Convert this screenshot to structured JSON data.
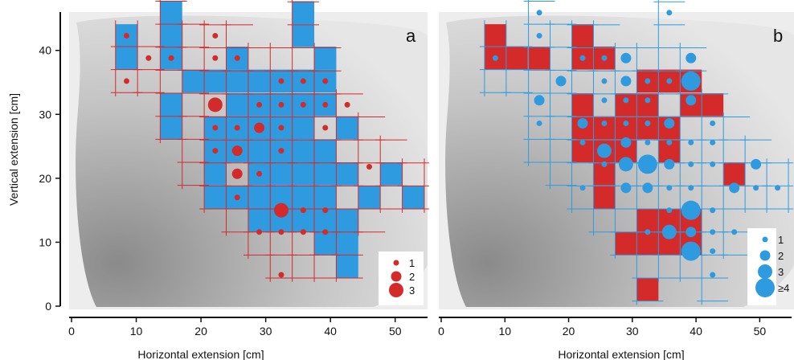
{
  "colors": {
    "blue": "#2e9be0",
    "red": "#d42a2a",
    "background_gradient_dark": "#8e8e8e",
    "background_gradient_light": "#e8e8e8",
    "panel_bg": "#eeeeee"
  },
  "chart_data": [
    {
      "type": "heatmap",
      "panel_label": "a",
      "xlabel": "Horizontal extension [cm]",
      "ylabel": "Vertical extension [cm]",
      "xlim": [
        0,
        55
      ],
      "ylim": [
        0,
        46
      ],
      "xticks": [
        0,
        10,
        20,
        30,
        40,
        50
      ],
      "yticks": [
        0,
        10,
        20,
        30,
        40
      ],
      "grid_color": "red",
      "cell_size_cm": [
        3.4,
        3.6
      ],
      "filled_cells": [
        [
          8.5,
          42.3
        ],
        [
          15.4,
          45.9
        ],
        [
          15.4,
          42.3
        ],
        [
          15.4,
          38.8
        ],
        [
          18.8,
          35.2
        ],
        [
          15.4,
          31.5
        ],
        [
          15.4,
          27.9
        ],
        [
          22.2,
          27.9
        ],
        [
          22.2,
          24.3
        ],
        [
          22.2,
          20.7
        ],
        [
          25.6,
          38.8
        ],
        [
          25.6,
          35.2
        ],
        [
          25.6,
          31.5
        ],
        [
          25.6,
          27.9
        ],
        [
          25.6,
          24.3
        ],
        [
          29.0,
          35.2
        ],
        [
          29.0,
          31.5
        ],
        [
          29.0,
          27.9
        ],
        [
          29.0,
          24.3
        ],
        [
          29.0,
          20.7
        ],
        [
          32.4,
          35.2
        ],
        [
          32.4,
          31.5
        ],
        [
          32.4,
          27.9
        ],
        [
          32.4,
          24.3
        ],
        [
          32.4,
          20.7
        ],
        [
          35.8,
          45.9
        ],
        [
          35.8,
          42.3
        ],
        [
          35.8,
          35.2
        ],
        [
          35.8,
          31.5
        ],
        [
          35.8,
          27.9
        ],
        [
          35.8,
          24.3
        ],
        [
          35.8,
          20.7
        ],
        [
          35.8,
          17.0
        ],
        [
          35.8,
          13.4
        ],
        [
          39.2,
          38.8
        ],
        [
          39.2,
          35.2
        ],
        [
          39.2,
          31.5
        ],
        [
          39.2,
          24.3
        ],
        [
          39.2,
          20.7
        ],
        [
          39.2,
          17.0
        ],
        [
          39.2,
          9.8
        ],
        [
          42.6,
          27.9
        ],
        [
          42.6,
          20.7
        ],
        [
          42.6,
          13.4
        ],
        [
          42.6,
          6.2
        ],
        [
          22.2,
          17.0
        ],
        [
          25.6,
          17.0
        ],
        [
          29.0,
          17.0
        ],
        [
          32.4,
          17.0
        ],
        [
          46.0,
          17.0
        ],
        [
          49.4,
          20.7
        ],
        [
          52.8,
          17.0
        ],
        [
          29.0,
          13.4
        ],
        [
          32.4,
          13.4
        ],
        [
          39.2,
          13.4
        ],
        [
          42.6,
          9.8
        ],
        [
          22.2,
          35.2
        ],
        [
          8.5,
          38.8
        ]
      ],
      "grid_columns": [
        {
          "x": 8.5,
          "y_range": [
            35.2,
            42.3
          ]
        },
        {
          "x": 11.9,
          "y_range": [
            35.2,
            42.3
          ]
        },
        {
          "x": 15.4,
          "y_range": [
            27.9,
            45.9
          ]
        },
        {
          "x": 18.8,
          "y_range": [
            20.7,
            42.3
          ]
        },
        {
          "x": 22.2,
          "y_range": [
            17.0,
            42.3
          ]
        },
        {
          "x": 25.6,
          "y_range": [
            13.4,
            42.3
          ]
        },
        {
          "x": 29.0,
          "y_range": [
            9.8,
            38.8
          ]
        },
        {
          "x": 32.4,
          "y_range": [
            6.2,
            38.8
          ]
        },
        {
          "x": 35.8,
          "y_range": [
            6.2,
            45.9
          ]
        },
        {
          "x": 39.2,
          "y_range": [
            6.2,
            38.8
          ]
        },
        {
          "x": 42.6,
          "y_range": [
            6.2,
            31.5
          ]
        },
        {
          "x": 46.0,
          "y_range": [
            13.4,
            27.9
          ]
        },
        {
          "x": 49.4,
          "y_range": [
            17.0,
            24.3
          ]
        },
        {
          "x": 52.8,
          "y_range": [
            17.0,
            20.7
          ]
        }
      ],
      "dots": [
        {
          "x": 8.5,
          "y": 42.3,
          "n": 1
        },
        {
          "x": 11.9,
          "y": 38.8,
          "n": 1
        },
        {
          "x": 15.4,
          "y": 38.8,
          "n": 1
        },
        {
          "x": 8.5,
          "y": 35.2,
          "n": 1
        },
        {
          "x": 22.2,
          "y": 42.3,
          "n": 1
        },
        {
          "x": 22.2,
          "y": 38.8,
          "n": 1
        },
        {
          "x": 25.6,
          "y": 38.8,
          "n": 1
        },
        {
          "x": 22.2,
          "y": 31.5,
          "n": 3
        },
        {
          "x": 22.2,
          "y": 27.9,
          "n": 1
        },
        {
          "x": 22.2,
          "y": 24.3,
          "n": 1
        },
        {
          "x": 25.6,
          "y": 27.9,
          "n": 1
        },
        {
          "x": 25.6,
          "y": 24.3,
          "n": 2
        },
        {
          "x": 25.6,
          "y": 20.7,
          "n": 2
        },
        {
          "x": 25.6,
          "y": 17.0,
          "n": 1
        },
        {
          "x": 29.0,
          "y": 31.5,
          "n": 1
        },
        {
          "x": 29.0,
          "y": 27.9,
          "n": 2
        },
        {
          "x": 29.0,
          "y": 20.7,
          "n": 1
        },
        {
          "x": 32.4,
          "y": 35.2,
          "n": 1
        },
        {
          "x": 32.4,
          "y": 31.5,
          "n": 1
        },
        {
          "x": 32.4,
          "y": 27.9,
          "n": 1
        },
        {
          "x": 32.4,
          "y": 24.3,
          "n": 1
        },
        {
          "x": 35.8,
          "y": 35.2,
          "n": 1
        },
        {
          "x": 35.8,
          "y": 31.5,
          "n": 1
        },
        {
          "x": 39.2,
          "y": 35.2,
          "n": 1
        },
        {
          "x": 39.2,
          "y": 31.5,
          "n": 1
        },
        {
          "x": 39.2,
          "y": 27.9,
          "n": 1
        },
        {
          "x": 42.6,
          "y": 31.5,
          "n": 1
        },
        {
          "x": 46.0,
          "y": 21.8,
          "n": 1
        },
        {
          "x": 32.4,
          "y": 15.0,
          "n": 3
        },
        {
          "x": 35.8,
          "y": 15.0,
          "n": 1
        },
        {
          "x": 39.2,
          "y": 15.0,
          "n": 1
        },
        {
          "x": 29.0,
          "y": 11.6,
          "n": 1
        },
        {
          "x": 32.4,
          "y": 11.6,
          "n": 1
        },
        {
          "x": 35.8,
          "y": 11.6,
          "n": 1
        },
        {
          "x": 39.2,
          "y": 11.6,
          "n": 1
        },
        {
          "x": 32.4,
          "y": 4.9,
          "n": 1
        }
      ],
      "dot_color": "red",
      "legend": {
        "position": "bottom-right",
        "labels": [
          "1",
          "2",
          "3"
        ]
      }
    },
    {
      "type": "heatmap",
      "panel_label": "b",
      "xlabel": "Horizontal extension [cm]",
      "ylabel": "",
      "xlim": [
        0,
        55
      ],
      "ylim": [
        0,
        46
      ],
      "xticks": [
        0,
        10,
        20,
        30,
        40,
        50
      ],
      "yticks": [
        0,
        10,
        20,
        30,
        40
      ],
      "grid_color": "blue",
      "cell_size_cm": [
        3.4,
        3.6
      ],
      "filled_cells": [
        [
          8.5,
          42.3
        ],
        [
          8.5,
          38.8
        ],
        [
          11.9,
          38.8
        ],
        [
          15.4,
          38.8
        ],
        [
          22.2,
          42.3
        ],
        [
          22.2,
          38.8
        ],
        [
          25.6,
          38.8
        ],
        [
          32.4,
          35.2
        ],
        [
          35.8,
          35.2
        ],
        [
          39.2,
          35.2
        ],
        [
          22.2,
          31.5
        ],
        [
          29.0,
          31.5
        ],
        [
          32.4,
          31.5
        ],
        [
          39.2,
          31.5
        ],
        [
          42.6,
          31.5
        ],
        [
          22.2,
          27.9
        ],
        [
          25.6,
          27.9
        ],
        [
          29.0,
          27.9
        ],
        [
          32.4,
          27.9
        ],
        [
          35.8,
          27.9
        ],
        [
          22.2,
          24.3
        ],
        [
          25.6,
          24.3
        ],
        [
          29.0,
          24.3
        ],
        [
          35.8,
          24.3
        ],
        [
          25.6,
          20.7
        ],
        [
          46.0,
          20.7
        ],
        [
          25.6,
          17.0
        ],
        [
          32.4,
          13.4
        ],
        [
          35.8,
          13.4
        ],
        [
          39.2,
          13.4
        ],
        [
          29.0,
          9.8
        ],
        [
          32.4,
          9.8
        ],
        [
          35.8,
          9.8
        ],
        [
          39.2,
          9.8
        ],
        [
          32.4,
          2.6
        ]
      ],
      "grid_columns": [
        {
          "x": 8.5,
          "y_range": [
            35.2,
            42.3
          ]
        },
        {
          "x": 11.9,
          "y_range": [
            35.2,
            42.3
          ]
        },
        {
          "x": 15.4,
          "y_range": [
            24.3,
            45.9
          ]
        },
        {
          "x": 18.8,
          "y_range": [
            20.7,
            42.3
          ]
        },
        {
          "x": 22.2,
          "y_range": [
            17.0,
            42.3
          ]
        },
        {
          "x": 25.6,
          "y_range": [
            13.4,
            42.3
          ]
        },
        {
          "x": 29.0,
          "y_range": [
            9.8,
            38.8
          ]
        },
        {
          "x": 32.4,
          "y_range": [
            2.6,
            38.8
          ]
        },
        {
          "x": 35.8,
          "y_range": [
            6.2,
            45.9
          ]
        },
        {
          "x": 39.2,
          "y_range": [
            6.2,
            38.8
          ]
        },
        {
          "x": 42.6,
          "y_range": [
            2.6,
            31.5
          ]
        },
        {
          "x": 46.0,
          "y_range": [
            9.8,
            27.9
          ]
        },
        {
          "x": 49.4,
          "y_range": [
            17.0,
            24.3
          ]
        },
        {
          "x": 52.8,
          "y_range": [
            17.0,
            20.7
          ]
        }
      ],
      "dots": [
        {
          "x": 15.4,
          "y": 45.9,
          "n": 1
        },
        {
          "x": 15.4,
          "y": 42.3,
          "n": 1
        },
        {
          "x": 8.5,
          "y": 38.8,
          "n": 1
        },
        {
          "x": 22.2,
          "y": 38.8,
          "n": 1
        },
        {
          "x": 25.6,
          "y": 38.8,
          "n": 1
        },
        {
          "x": 29.0,
          "y": 38.8,
          "n": 2
        },
        {
          "x": 39.2,
          "y": 38.8,
          "n": 2
        },
        {
          "x": 35.8,
          "y": 45.9,
          "n": 1
        },
        {
          "x": 18.8,
          "y": 35.2,
          "n": 2
        },
        {
          "x": 25.6,
          "y": 35.2,
          "n": 1
        },
        {
          "x": 29.0,
          "y": 35.2,
          "n": 2
        },
        {
          "x": 32.4,
          "y": 35.2,
          "n": 1
        },
        {
          "x": 35.8,
          "y": 35.2,
          "n": 1
        },
        {
          "x": 39.2,
          "y": 35.2,
          "n": 4
        },
        {
          "x": 15.4,
          "y": 32.2,
          "n": 2
        },
        {
          "x": 25.6,
          "y": 32.2,
          "n": 1
        },
        {
          "x": 29.0,
          "y": 32.2,
          "n": 1
        },
        {
          "x": 32.4,
          "y": 32.2,
          "n": 1
        },
        {
          "x": 39.2,
          "y": 32.2,
          "n": 2
        },
        {
          "x": 15.4,
          "y": 28.6,
          "n": 1
        },
        {
          "x": 22.2,
          "y": 28.6,
          "n": 2
        },
        {
          "x": 25.6,
          "y": 28.6,
          "n": 1
        },
        {
          "x": 29.0,
          "y": 28.6,
          "n": 1
        },
        {
          "x": 32.4,
          "y": 28.6,
          "n": 1
        },
        {
          "x": 35.8,
          "y": 28.6,
          "n": 2
        },
        {
          "x": 42.6,
          "y": 28.6,
          "n": 1
        },
        {
          "x": 22.2,
          "y": 25.6,
          "n": 1
        },
        {
          "x": 29.0,
          "y": 25.6,
          "n": 2
        },
        {
          "x": 32.4,
          "y": 25.6,
          "n": 1
        },
        {
          "x": 35.8,
          "y": 25.6,
          "n": 1
        },
        {
          "x": 39.2,
          "y": 25.6,
          "n": 1
        },
        {
          "x": 42.6,
          "y": 25.6,
          "n": 1
        },
        {
          "x": 25.6,
          "y": 24.3,
          "n": 3
        },
        {
          "x": 29.0,
          "y": 22.2,
          "n": 3
        },
        {
          "x": 32.4,
          "y": 22.2,
          "n": 4
        },
        {
          "x": 35.8,
          "y": 22.2,
          "n": 2
        },
        {
          "x": 39.2,
          "y": 22.2,
          "n": 1
        },
        {
          "x": 42.6,
          "y": 22.2,
          "n": 1
        },
        {
          "x": 49.4,
          "y": 22.2,
          "n": 2
        },
        {
          "x": 22.2,
          "y": 18.5,
          "n": 1
        },
        {
          "x": 29.0,
          "y": 18.5,
          "n": 2
        },
        {
          "x": 32.4,
          "y": 18.5,
          "n": 2
        },
        {
          "x": 35.8,
          "y": 18.5,
          "n": 1
        },
        {
          "x": 39.2,
          "y": 18.5,
          "n": 1
        },
        {
          "x": 46.0,
          "y": 18.5,
          "n": 2
        },
        {
          "x": 49.4,
          "y": 18.5,
          "n": 1
        },
        {
          "x": 52.8,
          "y": 18.5,
          "n": 1
        },
        {
          "x": 25.6,
          "y": 22.2,
          "n": 1
        },
        {
          "x": 35.8,
          "y": 15.0,
          "n": 1
        },
        {
          "x": 39.2,
          "y": 15.0,
          "n": 4
        },
        {
          "x": 42.6,
          "y": 15.0,
          "n": 1
        },
        {
          "x": 32.4,
          "y": 11.6,
          "n": 1
        },
        {
          "x": 35.8,
          "y": 11.6,
          "n": 3
        },
        {
          "x": 39.2,
          "y": 11.6,
          "n": 2
        },
        {
          "x": 42.6,
          "y": 11.6,
          "n": 1
        },
        {
          "x": 46.0,
          "y": 11.6,
          "n": 1
        },
        {
          "x": 39.2,
          "y": 8.6,
          "n": 4
        },
        {
          "x": 42.6,
          "y": 8.6,
          "n": 1
        },
        {
          "x": 42.6,
          "y": 4.9,
          "n": 1
        },
        {
          "x": 32.4,
          "y": 28.6,
          "n": 1
        }
      ],
      "dot_color": "blue",
      "legend": {
        "position": "bottom-right",
        "labels": [
          "1",
          "2",
          "3",
          "≥4"
        ]
      }
    }
  ]
}
